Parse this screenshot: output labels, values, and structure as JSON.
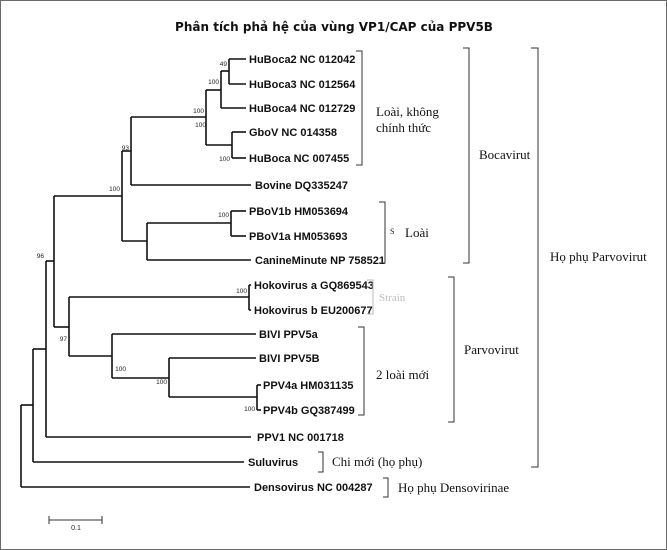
{
  "title": "Phân tích phả hệ của vùng VP1/CAP của PPV5B",
  "leaves": [
    {
      "id": "huboca2",
      "label": "HuBoca2 NC 012042"
    },
    {
      "id": "huboca3",
      "label": "HuBoca3 NC 012564"
    },
    {
      "id": "huboca4",
      "label": "HuBoca4 NC 012729"
    },
    {
      "id": "gbov",
      "label": "GboV NC 014358"
    },
    {
      "id": "huboca",
      "label": "HuBoca NC 007455"
    },
    {
      "id": "bovine",
      "label": "Bovine DQ335247"
    },
    {
      "id": "pbov1b",
      "label": "PBoV1b HM053694"
    },
    {
      "id": "pbov1a",
      "label": "PBoV1a HM053693"
    },
    {
      "id": "canine",
      "label": "CanineMinute NP 758521"
    },
    {
      "id": "hokoa",
      "label": "Hokovirus a GQ869543"
    },
    {
      "id": "hokob",
      "label": "Hokovirus b EU200677"
    },
    {
      "id": "bivi5a",
      "label": "BIVI PPV5a"
    },
    {
      "id": "bivi5b",
      "label": "BIVI PPV5B"
    },
    {
      "id": "ppv4a",
      "label": "PPV4a HM031135"
    },
    {
      "id": "ppv4b",
      "label": "PPV4b GQ387499"
    },
    {
      "id": "ppv1",
      "label": "PPV1 NC 001718"
    },
    {
      "id": "suluvirus",
      "label": "Suluvirus"
    },
    {
      "id": "densovirus",
      "label": "Densovirus NC 004287"
    }
  ],
  "bootstrap": [
    {
      "id": "n23",
      "value": "49"
    },
    {
      "id": "n234",
      "value": "100"
    },
    {
      "id": "nH",
      "value": "100"
    },
    {
      "id": "n5",
      "value": "100"
    },
    {
      "id": "nHB",
      "value": "100"
    },
    {
      "id": "nHBB",
      "value": "93"
    },
    {
      "id": "nPB",
      "value": "100"
    },
    {
      "id": "nBoca",
      "value": "100"
    },
    {
      "id": "nHoko",
      "value": "100"
    },
    {
      "id": "nPPV4",
      "value": "100"
    },
    {
      "id": "nPV5B",
      "value": "100"
    },
    {
      "id": "nPV5",
      "value": "100"
    },
    {
      "id": "nPar",
      "value": "97"
    },
    {
      "id": "nAll",
      "value": "96"
    }
  ],
  "groups": {
    "unofficial_species_line1": "Loài,  không",
    "unofficial_species_line2": "chính thức",
    "species_mark": "S",
    "species": "Loài",
    "strain": "Strain",
    "new_species": "2 loài mới",
    "new_genus": "Chi mới (họ phụ)",
    "densovirinae": "Họ phụ Densovirinae",
    "bocavirut": "Bocavirut",
    "parvovirut": "Parvovirut",
    "parvovirinae": "Họ phụ Parvovirut"
  },
  "scale_bar": {
    "label": "0.1"
  }
}
